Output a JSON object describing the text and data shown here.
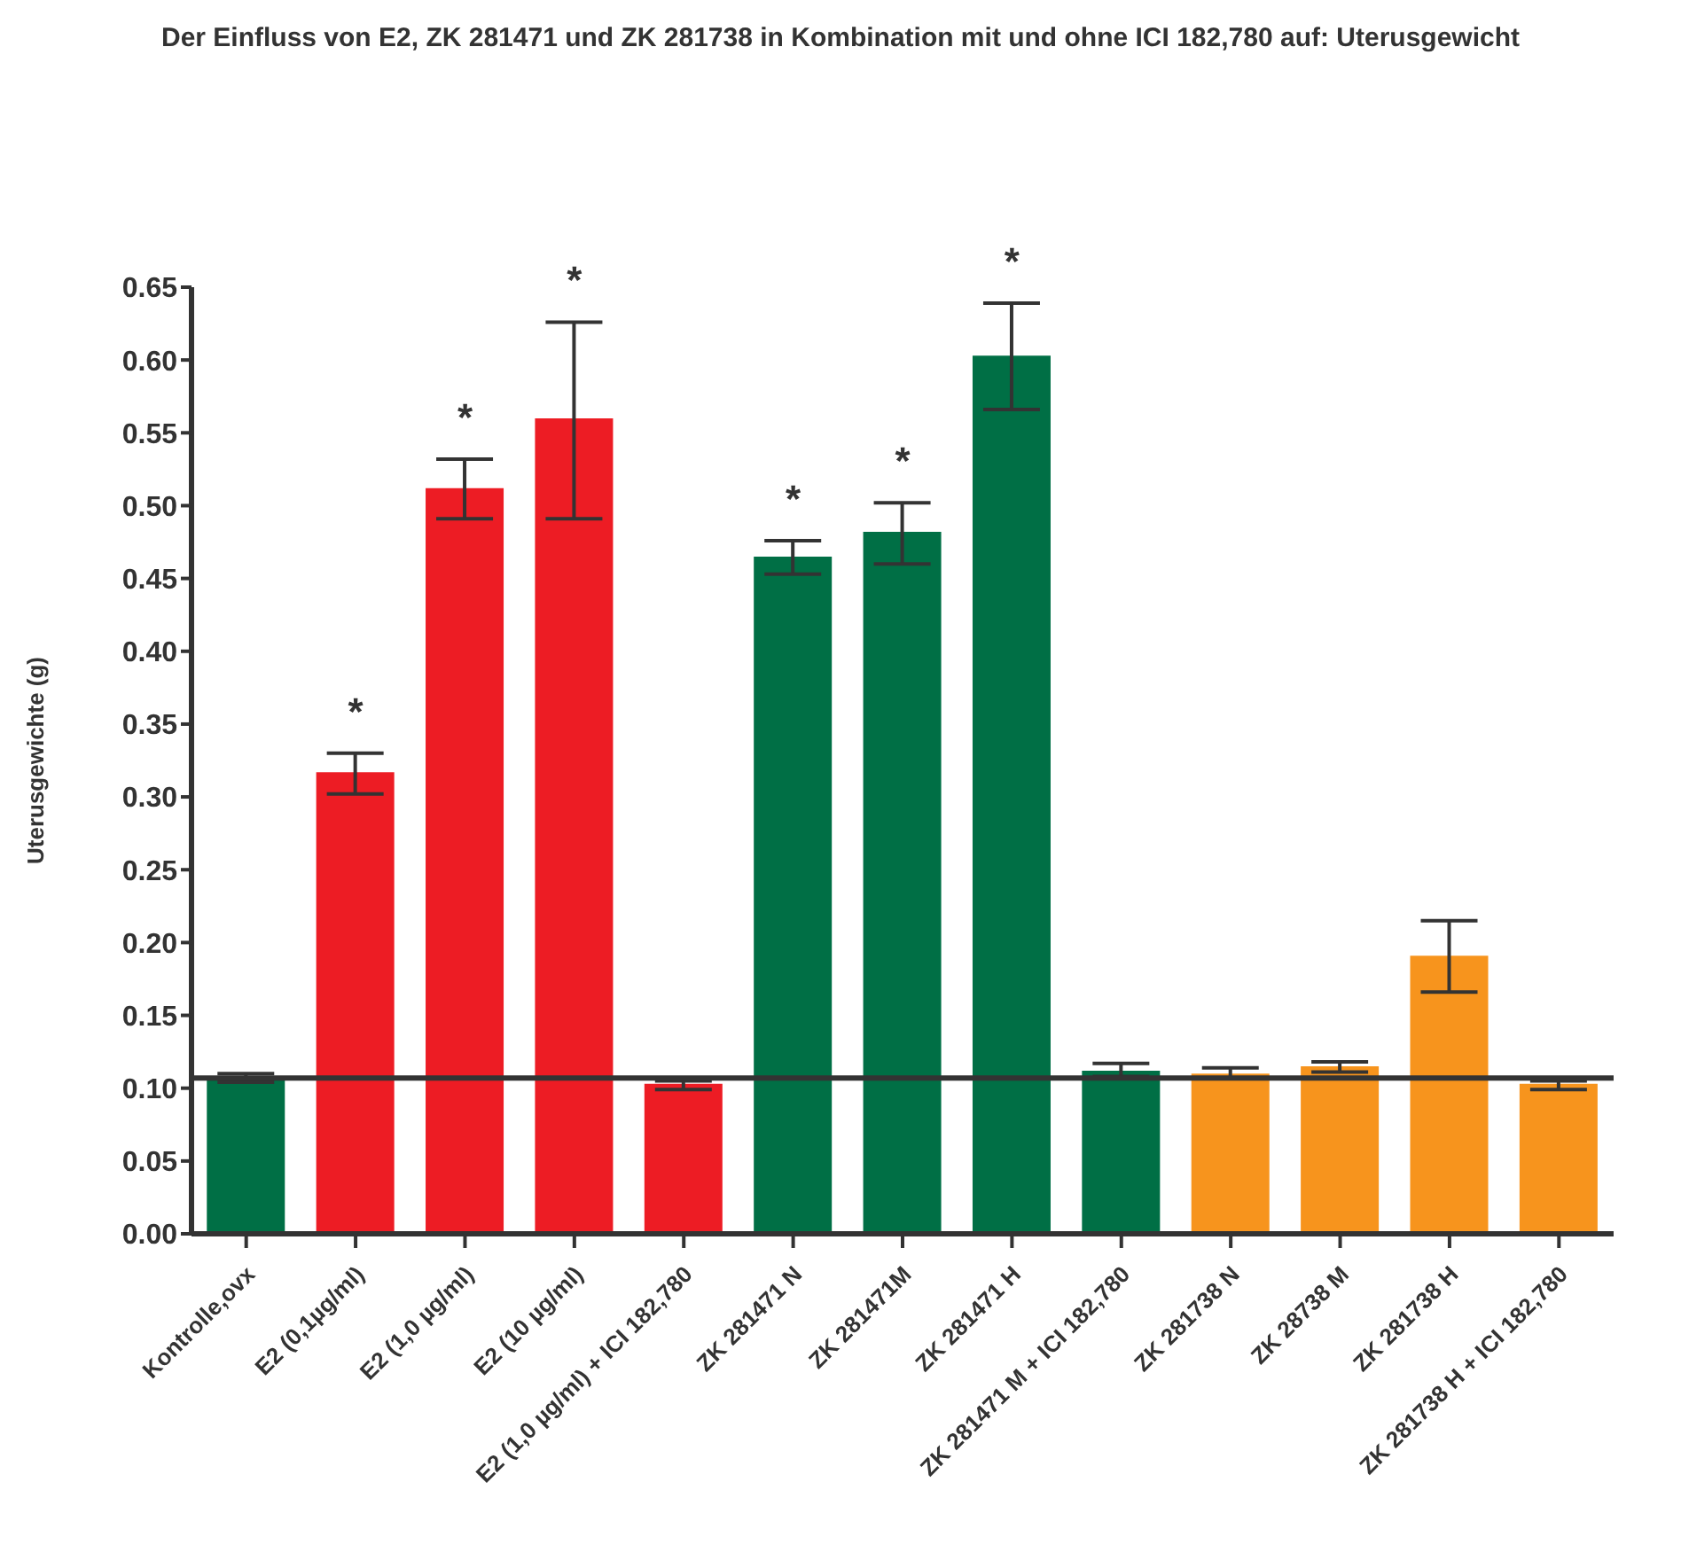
{
  "chart_data": {
    "type": "bar",
    "title": "Der Einfluss von E2, ZK 281471 und ZK 281738 in Kombination mit und ohne ICI 182,780 auf: Uterusgewicht",
    "ylabel": "Uterusgewichte (g)",
    "categories": [
      "Kontrolle,ovx",
      "E2 (0,1µg/ml)",
      "E2 (1,0 µg/ml)",
      "E2 (10 µg/ml)",
      "E2 (1,0 µg/ml) + ICI 182,780",
      "ZK 281471 N",
      "ZK 281471M",
      "ZK 281471 H",
      "ZK 281471 M + ICI 182,780",
      "ZK 281738 N",
      "ZK 28738 M",
      "ZK 281738 H",
      "ZK 281738 H + ICI 182,780"
    ],
    "values": [
      0.107,
      0.317,
      0.512,
      0.56,
      0.103,
      0.465,
      0.482,
      0.603,
      0.112,
      0.11,
      0.115,
      0.191,
      0.103
    ],
    "errors": [
      0.003,
      [
        0.302,
        0.33
      ],
      [
        0.491,
        0.532
      ],
      [
        0.491,
        0.626
      ],
      [
        0.099,
        0.105
      ],
      [
        0.453,
        0.476
      ],
      [
        0.46,
        0.502
      ],
      [
        0.566,
        0.639
      ],
      [
        0.108,
        0.117
      ],
      [
        0.107,
        0.114
      ],
      [
        0.111,
        0.118
      ],
      [
        0.166,
        0.215
      ],
      [
        0.099,
        0.105
      ]
    ],
    "colors": [
      "#006f45",
      "#ed1c24",
      "#ed1c24",
      "#ed1c24",
      "#ed1c24",
      "#006f45",
      "#006f45",
      "#006f45",
      "#006f45",
      "#f7941d",
      "#f7941d",
      "#f7941d",
      "#f7941d"
    ],
    "ylim": [
      0,
      0.65
    ],
    "yticks": [
      {
        "value": 0,
        "label": "0.00"
      },
      {
        "value": 0.05,
        "label": "0.05"
      },
      {
        "value": 0.1,
        "label": "0.10"
      },
      {
        "value": 0.15,
        "label": "0.15"
      },
      {
        "value": 0.2,
        "label": "0.20"
      },
      {
        "value": 0.25,
        "label": "0.25"
      },
      {
        "value": 0.3,
        "label": "0.30"
      },
      {
        "value": 0.35,
        "label": "0.35"
      },
      {
        "value": 0.4,
        "label": "0.40"
      },
      {
        "value": 0.45,
        "label": "0.45"
      },
      {
        "value": 0.5,
        "label": "0.50"
      },
      {
        "value": 0.55,
        "label": "0.55"
      },
      {
        "value": 0.6,
        "label": "0.60"
      },
      {
        "value": 0.65,
        "label": "0.65"
      }
    ],
    "ref_lines": [
      {
        "axis": "y",
        "value": 0.107,
        "color": "#333333"
      }
    ],
    "annotations": [
      {
        "text": "*",
        "x": "E2 (0,1µg/ml)",
        "y": 0.33
      },
      {
        "text": "*",
        "x": "E2 (1,0 µg/ml)",
        "y": 0.532
      },
      {
        "text": "*",
        "x": "E2 (10 µg/ml)",
        "y": 0.626
      },
      {
        "text": "*",
        "x": "ZK 281471 N",
        "y": 0.476
      },
      {
        "text": "*",
        "x": "ZK 281471M",
        "y": 0.502
      },
      {
        "text": "*",
        "x": "ZK 281471 H",
        "y": 0.639
      }
    ]
  }
}
